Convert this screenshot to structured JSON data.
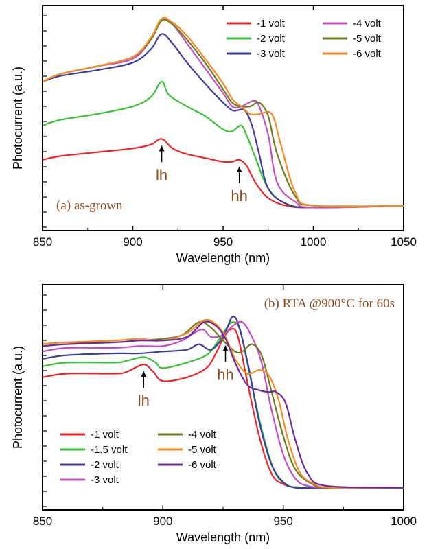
{
  "colors": {
    "-1 volt": "#e8262a",
    "-1.5 volt": "#3bbf3b",
    "-2 volt": "#3c3c99",
    "-3 volt": "#c24fc2",
    "-4 volt": "#6f7a22",
    "-5 volt": "#f58a26",
    "-6 volt": "#6a2a9a",
    "annotation": "#8B4A22"
  },
  "chart_data": [
    {
      "type": "line",
      "title": "(a) as-grown",
      "xlabel": "Wavelength (nm)",
      "ylabel": "Photocurrent (a.u.)",
      "xlim": [
        850,
        1050
      ],
      "ylim": [
        0,
        100
      ],
      "xticks": [
        "850",
        "900",
        "950",
        "1000",
        "1050"
      ],
      "grid": false,
      "legend_position": "top-right",
      "annotations": [
        {
          "text": "lh",
          "x": 916
        },
        {
          "text": "hh",
          "x": 959
        }
      ],
      "series": [
        {
          "name": "-1 volt",
          "color": "#e8262a",
          "x": [
            850,
            860,
            880,
            900,
            910,
            916,
            922,
            930,
            940,
            950,
            955,
            959,
            963,
            968,
            975,
            985,
            1000,
            1050
          ],
          "y": [
            27,
            29,
            31,
            33,
            35,
            38,
            33,
            30,
            28,
            26,
            26,
            27,
            24,
            15,
            7,
            3,
            2,
            3
          ]
        },
        {
          "name": "-2 volt",
          "color": "#3bbf3b",
          "x": [
            850,
            860,
            880,
            900,
            910,
            916,
            920,
            930,
            940,
            950,
            955,
            960,
            963,
            968,
            975,
            985,
            1000,
            1050
          ],
          "y": [
            45,
            48,
            51,
            55,
            60,
            68,
            61,
            55,
            50,
            43,
            42,
            45,
            40,
            28,
            12,
            4,
            2,
            3
          ]
        },
        {
          "name": "-3 volt",
          "color": "#3c3c99",
          "x": [
            850,
            860,
            880,
            900,
            910,
            916,
            922,
            930,
            940,
            950,
            955,
            958,
            962,
            966,
            970,
            975,
            985,
            1000,
            1050
          ],
          "y": [
            68,
            71,
            74,
            78,
            85,
            93,
            88,
            78,
            67,
            57,
            53,
            53,
            53,
            45,
            30,
            12,
            4,
            2,
            3
          ]
        },
        {
          "name": "-4 volt",
          "color": "#c24fc2",
          "x": [
            850,
            860,
            880,
            900,
            910,
            916,
            922,
            930,
            940,
            950,
            955,
            960,
            967,
            970,
            975,
            980,
            990,
            1000,
            1050
          ],
          "y": [
            68,
            72,
            76,
            80,
            90,
            100,
            98,
            88,
            75,
            62,
            55,
            55,
            58,
            55,
            40,
            15,
            5,
            2,
            3
          ]
        },
        {
          "name": "-5 volt",
          "color": "#6f7a22",
          "x": [
            850,
            860,
            880,
            900,
            910,
            916,
            922,
            930,
            940,
            950,
            955,
            960,
            965,
            970,
            975,
            980,
            990,
            1000,
            1050
          ],
          "y": [
            68,
            72,
            76,
            81,
            90,
            100,
            98,
            90,
            78,
            64,
            57,
            55,
            55,
            57,
            50,
            30,
            8,
            3,
            3
          ]
        },
        {
          "name": "-6 volt",
          "color": "#f58a26",
          "x": [
            850,
            860,
            880,
            900,
            910,
            916,
            922,
            930,
            940,
            950,
            955,
            960,
            965,
            970,
            977,
            982,
            990,
            1000,
            1050
          ],
          "y": [
            68,
            72,
            76,
            81,
            91,
            101,
            99,
            92,
            80,
            67,
            59,
            55,
            51,
            51,
            51,
            35,
            10,
            3,
            3
          ]
        }
      ]
    },
    {
      "type": "line",
      "title": "(b) RTA @900°C for 60s",
      "xlabel": "Wavelength (nm)",
      "ylabel": "Photocurrent (a.u.)",
      "xlim": [
        850,
        1000
      ],
      "ylim": [
        0,
        100
      ],
      "xticks": [
        "850",
        "900",
        "950",
        "1000"
      ],
      "grid": false,
      "legend_position": "bottom-left",
      "annotations": [
        {
          "text": "lh",
          "x": 892
        },
        {
          "text": "hh",
          "x": 926
        }
      ],
      "series": [
        {
          "name": "-1 volt",
          "color": "#e8262a",
          "x": [
            850,
            860,
            880,
            885,
            892,
            896,
            900,
            910,
            918,
            922,
            925,
            928,
            931,
            935,
            940,
            945,
            950,
            960,
            1000
          ],
          "y": [
            62,
            64,
            64,
            65,
            69,
            65,
            60,
            62,
            67,
            75,
            83,
            88,
            85,
            60,
            30,
            10,
            4,
            2,
            2
          ]
        },
        {
          "name": "-1.5 volt",
          "color": "#3bbf3b",
          "x": [
            850,
            860,
            880,
            885,
            892,
            897,
            900,
            910,
            918,
            922,
            926,
            929,
            932,
            936,
            941,
            946,
            951,
            960,
            1000
          ],
          "y": [
            68,
            70,
            70,
            71,
            73,
            70,
            67,
            70,
            74,
            80,
            88,
            92,
            88,
            64,
            34,
            12,
            4,
            2,
            2
          ]
        },
        {
          "name": "-2 volt",
          "color": "#3c3c99",
          "x": [
            850,
            860,
            880,
            890,
            900,
            910,
            915,
            920,
            925,
            929,
            932,
            936,
            940,
            945,
            950,
            955,
            965,
            1000
          ],
          "y": [
            72,
            74,
            75,
            75,
            76,
            77,
            80,
            77,
            84,
            95,
            88,
            65,
            38,
            15,
            5,
            2,
            2,
            2
          ]
        },
        {
          "name": "-3 volt",
          "color": "#c24fc2",
          "x": [
            850,
            860,
            880,
            890,
            900,
            908,
            916,
            920,
            925,
            929,
            933,
            937,
            941,
            945,
            950,
            955,
            960,
            970,
            1000
          ],
          "y": [
            76,
            78,
            78,
            79,
            79,
            82,
            88,
            84,
            85,
            90,
            92,
            84,
            70,
            45,
            20,
            7,
            3,
            2,
            2
          ]
        },
        {
          "name": "-4 volt",
          "color": "#6f7a22",
          "x": [
            850,
            860,
            880,
            890,
            900,
            908,
            915,
            920,
            925,
            930,
            933,
            937,
            941,
            945,
            950,
            955,
            962,
            970,
            1000
          ],
          "y": [
            80,
            81,
            81,
            82,
            83,
            85,
            92,
            89,
            82,
            76,
            76,
            80,
            74,
            55,
            30,
            12,
            4,
            2,
            2
          ]
        },
        {
          "name": "-5 volt",
          "color": "#f58a26",
          "x": [
            850,
            860,
            880,
            890,
            900,
            910,
            917,
            922,
            926,
            930,
            935,
            940,
            944,
            948,
            952,
            957,
            963,
            970,
            1000
          ],
          "y": [
            80,
            81,
            82,
            83,
            82,
            86,
            93,
            91,
            84,
            72,
            64,
            66,
            63,
            50,
            28,
            10,
            4,
            2,
            2
          ]
        },
        {
          "name": "-6 volt",
          "color": "#6a2a9a",
          "x": [
            850,
            860,
            880,
            890,
            900,
            910,
            917,
            922,
            926,
            930,
            935,
            940,
            944,
            947,
            951,
            955,
            960,
            968,
            1000
          ],
          "y": [
            79,
            80,
            81,
            82,
            82,
            84,
            92,
            90,
            83,
            70,
            58,
            55,
            54,
            54,
            48,
            28,
            10,
            3,
            2
          ]
        }
      ]
    }
  ]
}
